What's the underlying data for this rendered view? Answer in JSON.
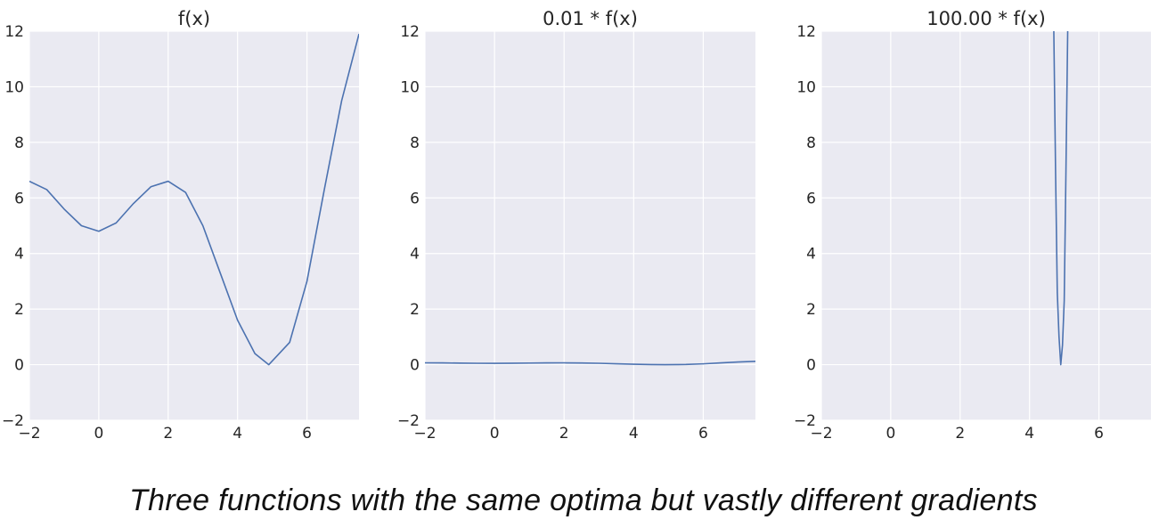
{
  "colors": {
    "axes_bg": "#EAEAF2",
    "grid": "#FFFFFF",
    "line": "#4C72B0",
    "text": "#262626"
  },
  "caption": "Three functions with the same optima but vastly different gradients",
  "chart_data": [
    {
      "type": "line",
      "title": "f(x)",
      "xlabel": "",
      "ylabel": "",
      "xlim": [
        -2,
        7.5
      ],
      "ylim": [
        -2,
        12
      ],
      "xticks": [
        -2,
        0,
        2,
        4,
        6
      ],
      "yticks": [
        -2,
        0,
        2,
        4,
        6,
        8,
        10,
        12
      ],
      "grid": true,
      "series": [
        {
          "x": [
            -2,
            -1.5,
            -1,
            -0.5,
            0,
            0.5,
            1,
            1.5,
            2,
            2.5,
            3,
            3.5,
            4,
            4.5,
            4.9,
            5.5,
            6,
            6.5,
            7,
            7.5
          ],
          "values": [
            6.6,
            6.3,
            5.6,
            5.0,
            4.8,
            5.1,
            5.8,
            6.4,
            6.6,
            6.2,
            5.0,
            3.3,
            1.6,
            0.4,
            0.0,
            0.8,
            3.0,
            6.3,
            9.5,
            11.9
          ]
        }
      ]
    },
    {
      "type": "line",
      "title": "0.01 * f(x)",
      "xlabel": "",
      "ylabel": "",
      "xlim": [
        -2,
        7.5
      ],
      "ylim": [
        -2,
        12
      ],
      "xticks": [
        -2,
        0,
        2,
        4,
        6
      ],
      "yticks": [
        -2,
        0,
        2,
        4,
        6,
        8,
        10,
        12
      ],
      "grid": true,
      "series": [
        {
          "x": [
            -2,
            -1.5,
            -1,
            -0.5,
            0,
            0.5,
            1,
            1.5,
            2,
            2.5,
            3,
            3.5,
            4,
            4.5,
            4.9,
            5.5,
            6,
            6.5,
            7,
            7.5
          ],
          "values": [
            0.066,
            0.063,
            0.056,
            0.05,
            0.048,
            0.051,
            0.058,
            0.064,
            0.066,
            0.062,
            0.05,
            0.033,
            0.016,
            0.004,
            0.0,
            0.008,
            0.03,
            0.063,
            0.095,
            0.119
          ]
        }
      ]
    },
    {
      "type": "line",
      "title": "100.00 * f(x)",
      "xlabel": "",
      "ylabel": "",
      "xlim": [
        -2,
        7.5
      ],
      "ylim": [
        -2,
        12
      ],
      "xticks": [
        -2,
        0,
        2,
        4,
        6
      ],
      "yticks": [
        -2,
        0,
        2,
        4,
        6,
        8,
        10,
        12
      ],
      "grid": true,
      "series": [
        {
          "x": [
            4.7,
            4.75,
            4.8,
            4.85,
            4.9,
            4.95,
            5.0,
            5.05,
            5.1
          ],
          "values": [
            12,
            7.0,
            2.6,
            1.0,
            0.0,
            0.7,
            2.3,
            7.0,
            12
          ]
        }
      ]
    }
  ]
}
